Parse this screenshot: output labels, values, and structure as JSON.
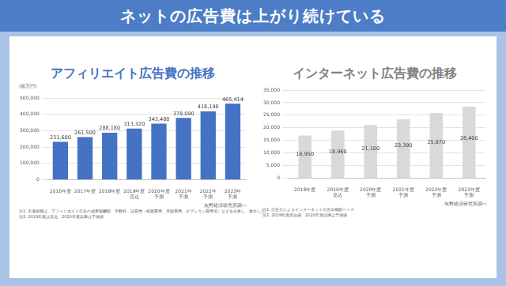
{
  "header": {
    "title": "ネットの広告費は上がり続けている"
  },
  "chart_data": [
    {
      "type": "bar",
      "title": "アフィリエイト広告費の推移",
      "ylabel": "(百万円)",
      "categories": [
        "2016年度",
        "2017年度",
        "2018年度",
        "2019年度見込",
        "2020年度予測",
        "2021年予測",
        "2022年予測",
        "2023年予測"
      ],
      "values": [
        231600,
        261500,
        288180,
        313320,
        343480,
        378090,
        418190,
        465414
      ],
      "value_labels": [
        "231,600",
        "261,500",
        "288,180",
        "313,320",
        "343,480",
        "378,090",
        "418,190",
        "465,414"
      ],
      "color": "#4472c4",
      "ylim": [
        0,
        500000
      ],
      "yticks": [
        {
          "value": 0,
          "label": "0"
        },
        {
          "value": 100000,
          "label": "100,000"
        },
        {
          "value": 200000,
          "label": "200,000"
        },
        {
          "value": 300000,
          "label": "300,000"
        },
        {
          "value": 400000,
          "label": "400,000"
        },
        {
          "value": 500000,
          "label": "500,000"
        }
      ],
      "grid": true,
      "data_labels": true,
      "source": "矢野経済研究所調べ",
      "notes": [
        "注1. 市場規模は、アフィリエイト広告の成果報酬額、手数料、諸費用（初期費用、月額費用、オプション費用等）などを合算し、算出した。",
        "注2. 2019年度は見込、2020年度以降は予測値"
      ]
    },
    {
      "type": "bar",
      "title": "インターネット広告費の推移",
      "categories": [
        "2018年度",
        "2019年度見込",
        "2020年度予測",
        "2021年度予測",
        "2022年度予測",
        "2023年度予測"
      ],
      "values": [
        16950,
        18960,
        21100,
        23390,
        25870,
        28400
      ],
      "value_labels": [
        "16,950",
        "18,960",
        "21,100",
        "23,390",
        "25,870",
        "28,400"
      ],
      "color": "#d9d9d9",
      "ylim": [
        0,
        35000
      ],
      "yticks": [
        {
          "value": 0,
          "label": "0"
        },
        {
          "value": 5000,
          "label": "5,000"
        },
        {
          "value": 10000,
          "label": "10,000"
        },
        {
          "value": 15000,
          "label": "15,000"
        },
        {
          "value": 20000,
          "label": "20,000"
        },
        {
          "value": 25000,
          "label": "25,000"
        },
        {
          "value": 30000,
          "label": "30,000"
        },
        {
          "value": 35000,
          "label": "35,000"
        }
      ],
      "grid": true,
      "data_labels": true,
      "source": "矢野経済研究所調べ",
      "notes": [
        "注1. 広告主によるインターネット広告出稿額ベース",
        "注2. 2019年度見込値、2020年度以降は予測値"
      ]
    }
  ]
}
